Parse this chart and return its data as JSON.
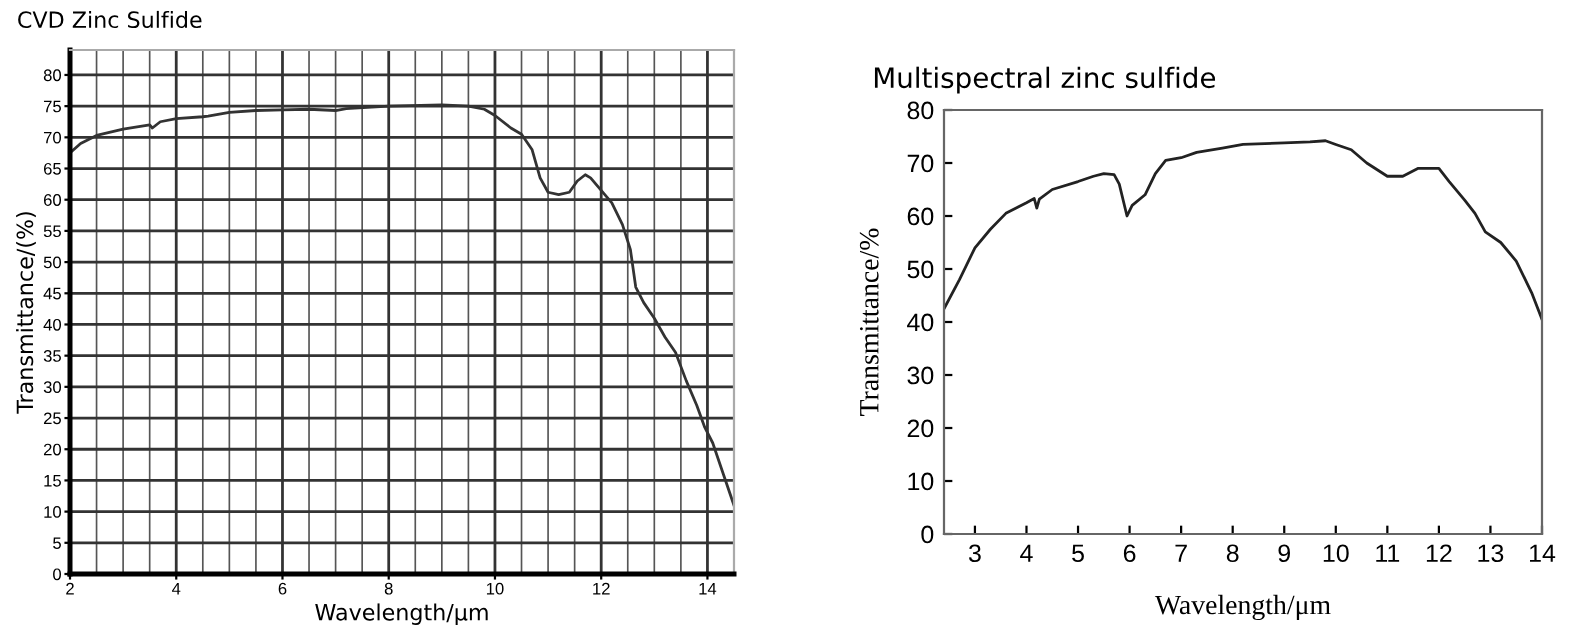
{
  "chart_data": [
    {
      "type": "line",
      "title": "CVD Zinc Sulfide",
      "xlabel": "Wavelength/μm",
      "ylabel": "Transmittance/(%)",
      "xlim": [
        2,
        14.5
      ],
      "ylim": [
        0,
        84
      ],
      "xticks": [
        2,
        4,
        6,
        8,
        10,
        12,
        14
      ],
      "yticks": [
        0,
        5,
        10,
        15,
        20,
        25,
        30,
        35,
        40,
        45,
        50,
        55,
        60,
        65,
        70,
        75,
        80
      ],
      "grid": true,
      "marker": "none",
      "line_style": "solid",
      "series": [
        {
          "color": "#333333",
          "x": [
            2.0,
            2.2,
            2.5,
            3.0,
            3.5,
            3.55,
            3.7,
            4.0,
            4.5,
            4.6,
            5.0,
            5.5,
            6.0,
            6.5,
            7.0,
            7.2,
            8.0,
            9.0,
            9.5,
            9.8,
            10.0,
            10.3,
            10.5,
            10.7,
            10.85,
            11.0,
            11.2,
            11.4,
            11.55,
            11.7,
            11.8,
            12.0,
            12.2,
            12.4,
            12.55,
            12.65,
            12.8,
            13.0,
            13.2,
            13.4,
            13.6,
            13.8,
            13.95,
            14.1,
            14.3,
            14.5
          ],
          "values": [
            67.5,
            69,
            70.3,
            71.3,
            72,
            71.5,
            72.5,
            73,
            73.3,
            73.4,
            74,
            74.3,
            74.4,
            74.5,
            74.3,
            74.6,
            75,
            75.2,
            75,
            74.5,
            73.5,
            71.5,
            70.5,
            68,
            63.5,
            61.2,
            60.8,
            61.2,
            63,
            64,
            63.5,
            61.5,
            59.5,
            56,
            52,
            46,
            43.5,
            41,
            38,
            35.5,
            31,
            27,
            23.5,
            21,
            16,
            11
          ]
        }
      ]
    },
    {
      "type": "line",
      "title": "Multispectral zinc sulfide",
      "xlabel": "Wavelength/μm",
      "ylabel": "Transmittance/%",
      "xlim": [
        2.4,
        14
      ],
      "ylim": [
        0,
        80
      ],
      "xticks": [
        3,
        4,
        5,
        6,
        7,
        8,
        9,
        10,
        11,
        12,
        13,
        14
      ],
      "yticks": [
        0,
        10,
        20,
        30,
        40,
        50,
        60,
        70,
        80
      ],
      "marker": "none",
      "line_style": "solid",
      "series": [
        {
          "color": "#222222",
          "x": [
            2.4,
            2.7,
            3.0,
            3.3,
            3.6,
            3.8,
            4.0,
            4.15,
            4.2,
            4.25,
            4.5,
            5.0,
            5.3,
            5.5,
            5.7,
            5.8,
            5.95,
            6.05,
            6.3,
            6.5,
            6.7,
            7.0,
            7.3,
            7.8,
            8.2,
            9.0,
            9.5,
            9.8,
            10.0,
            10.3,
            10.6,
            11.0,
            11.3,
            11.6,
            12.0,
            12.2,
            12.5,
            12.7,
            12.9,
            13.2,
            13.5,
            13.8,
            14.0
          ],
          "values": [
            42.5,
            48,
            54,
            57.5,
            60.5,
            61.5,
            62.5,
            63.3,
            61.5,
            63.2,
            65,
            66.5,
            67.5,
            68,
            67.8,
            66,
            60,
            62,
            64,
            68,
            70.5,
            71,
            72,
            72.8,
            73.5,
            73.8,
            74,
            74.2,
            73.5,
            72.5,
            70,
            67.5,
            67.5,
            69,
            69,
            66.5,
            63,
            60.5,
            57,
            55,
            51.5,
            45.5,
            40.5
          ]
        }
      ]
    }
  ]
}
